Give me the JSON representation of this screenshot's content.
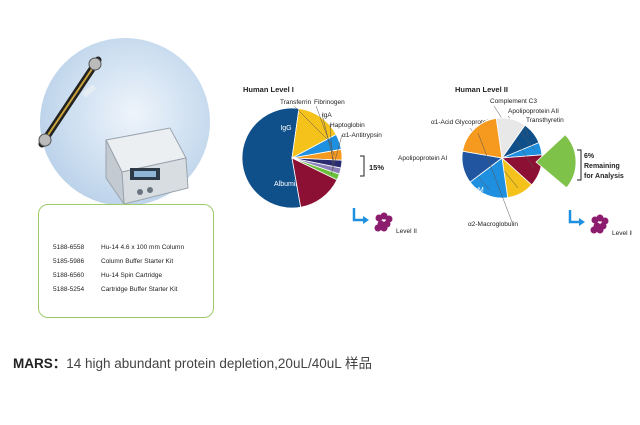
{
  "catalog": [
    {
      "number": "5188-6558",
      "name": "Hu-14 4.6 x 100 mm Column"
    },
    {
      "number": "5185-5986",
      "name": "Column Buffer Starter Kit"
    },
    {
      "number": "5188-6560",
      "name": "Hu-14 Spin Cartridge"
    },
    {
      "number": "5188-5254",
      "name": "Cartridge Buffer Starter Kit"
    }
  ],
  "caption": {
    "prefix": "MARS：",
    "text": "14 high abundant protein depletion,20uL/40uL 样品"
  },
  "chart_data": [
    {
      "type": "pie",
      "title": "Human Level I",
      "slices": [
        {
          "label": "Albumin",
          "value": 55,
          "color": "#0f4f8a"
        },
        {
          "label": "IgG",
          "value": 15,
          "color": "#f4c21b"
        },
        {
          "label": "Transferrin",
          "value": 5,
          "color": "#1f8fe0"
        },
        {
          "label": "Fibrinogen",
          "value": 3.5,
          "color": "#f59a1f"
        },
        {
          "label": "IgA",
          "value": 2.5,
          "color": "#2b2b72"
        },
        {
          "label": "Haptoglobin",
          "value": 2,
          "color": "#8a7fb8"
        },
        {
          "label": "α1-Antitrypsin",
          "value": 2,
          "color": "#6abf3b"
        },
        {
          "label": "",
          "value": 15,
          "color": "#8c1034"
        }
      ],
      "annotations": [
        "15%"
      ],
      "sub_label": "Level II"
    },
    {
      "type": "pie",
      "title": "Human Level II",
      "slices": [
        {
          "label": "Transthyretin",
          "value": 9,
          "color": "#0f4f8a"
        },
        {
          "label": "Apolipoprotein AII",
          "value": 5,
          "color": "#1f8fe0"
        },
        {
          "label": "Complement C3",
          "value": 13,
          "color": "#8c1034"
        },
        {
          "label": "α1-Acid Glycoprotein",
          "value": 11,
          "color": "#f4c21b"
        },
        {
          "label": "Apolipoprotein AI",
          "value": 17,
          "color": "#1f8fe0"
        },
        {
          "label": "IgM",
          "value": 13,
          "color": "#2255a0"
        },
        {
          "label": "α2-Macroglobulin",
          "value": 20,
          "color": "#f59a1f"
        },
        {
          "label": "",
          "value": 12,
          "color": "#e8e8e8"
        }
      ],
      "exploded": {
        "value": 6,
        "color": "#7fc24a"
      },
      "annotations": [
        "6%",
        "Remaining",
        "for Analysis"
      ],
      "sub_label": "Level II"
    }
  ]
}
